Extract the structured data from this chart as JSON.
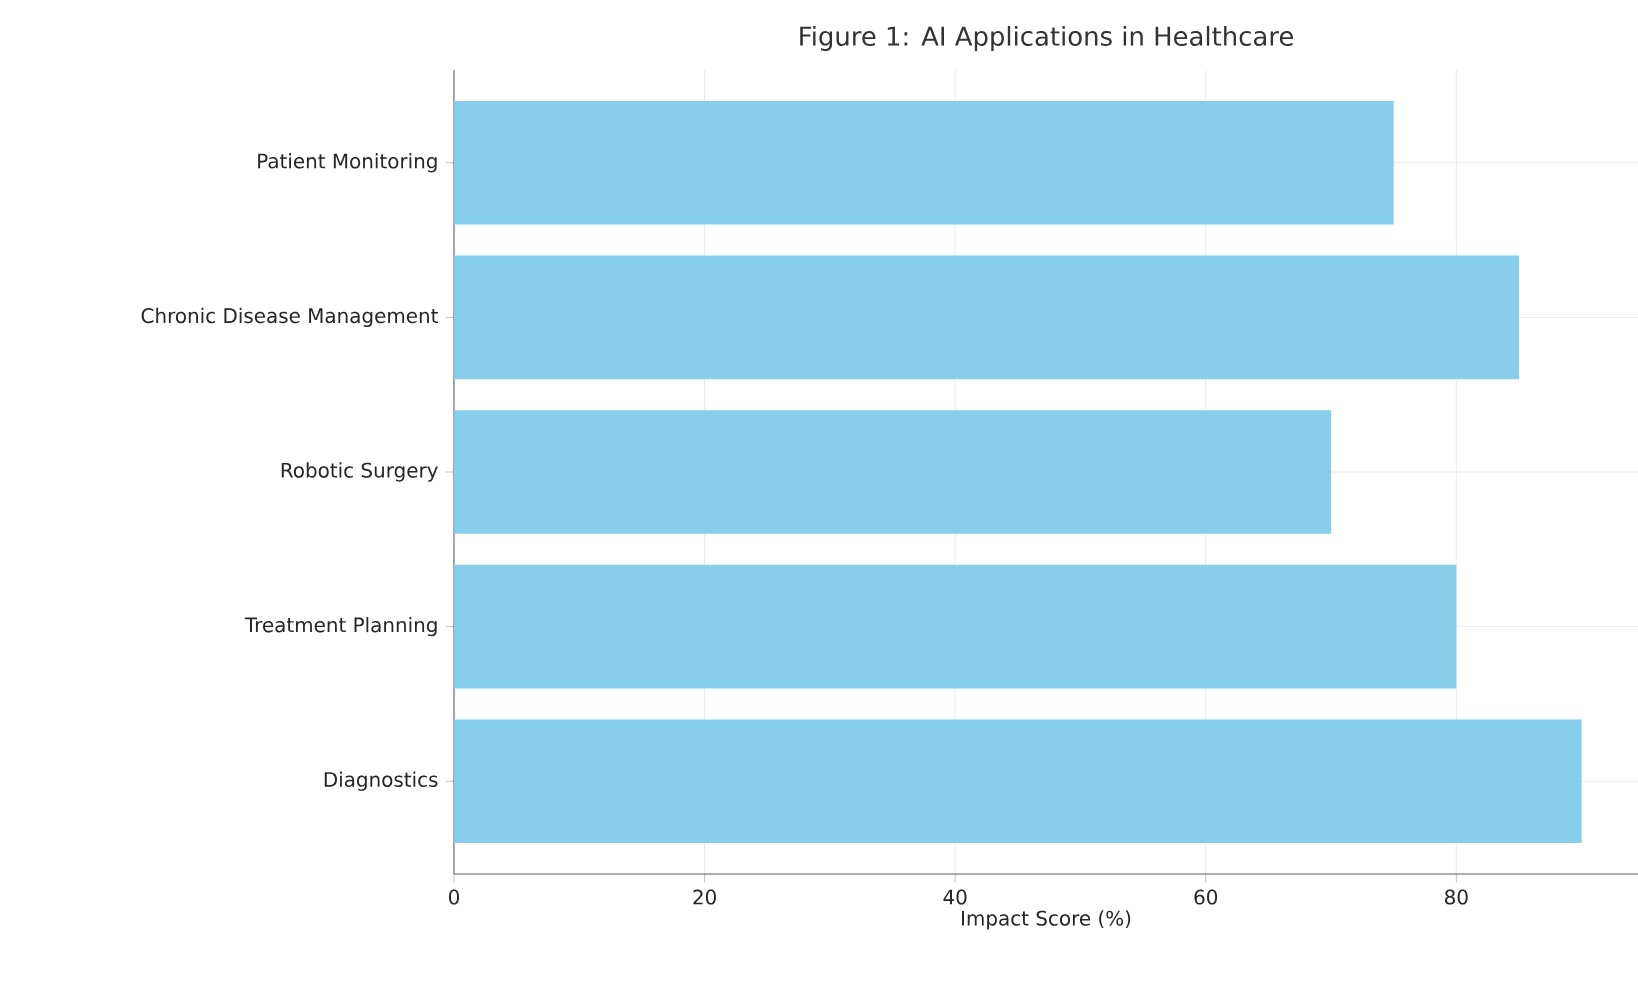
{
  "chart_data": {
    "type": "bar",
    "orientation": "horizontal",
    "title": "Figure 1: AI Applications in Healthcare",
    "xlabel": "Impact Score (%)",
    "categories": [
      "Patient Monitoring",
      "Chronic Disease Management",
      "Robotic Surgery",
      "Treatment Planning",
      "Diagnostics"
    ],
    "values": [
      75,
      85,
      70,
      80,
      90
    ],
    "color": "#87ceeb",
    "xlim": [
      0,
      94.5
    ],
    "xticks": [
      0,
      20,
      40,
      60,
      80
    ],
    "grid": true
  }
}
